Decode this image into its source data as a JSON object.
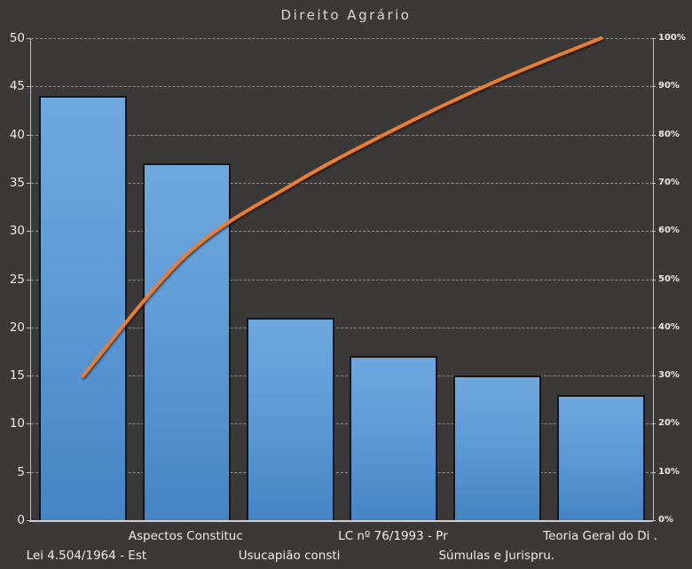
{
  "chart_data": {
    "type": "bar",
    "subtype": "pareto-combo",
    "title": "Direito Agrário",
    "legend": "none",
    "grid": true,
    "categories": [
      "Lei 4.504/1964 - Est",
      "Aspectos Constituc",
      "Usucapião consti",
      "LC nº 76/1993 - Pr",
      "Súmulas e Jurispru.",
      "Teoria Geral do Di ."
    ],
    "series": [
      {
        "name": "questoes-count",
        "type": "bar",
        "axis": "left",
        "values": [
          44,
          37,
          21,
          17,
          15,
          13
        ]
      },
      {
        "name": "cumulative-percent",
        "type": "line",
        "axis": "right",
        "values": [
          29.9,
          55.1,
          69.4,
          81.0,
          91.2,
          100
        ]
      }
    ],
    "left_axis": {
      "min": 0,
      "max": 50,
      "step": 5,
      "tick_labels": [
        "0",
        "5",
        "10",
        "15",
        "20",
        "25",
        "30",
        "35",
        "40",
        "45",
        "50"
      ]
    },
    "right_axis": {
      "min": 0,
      "max": 100,
      "step": 10,
      "tick_labels": [
        "0%",
        "10%",
        "20%",
        "30%",
        "40%",
        "50%",
        "60%",
        "70%",
        "80%",
        "90%",
        "100%"
      ]
    }
  },
  "colors": {
    "background": "#3B3838",
    "plot_border": "#BFBFBF",
    "gridline": "#9E9E9E",
    "bar_fill_top": "#6FA8DE",
    "bar_fill_bottom": "#4584C5",
    "bar_border": "#151515",
    "line": "#ED7D31",
    "title_text": "#D9D9D9",
    "axis_text": "#ECECEC"
  }
}
